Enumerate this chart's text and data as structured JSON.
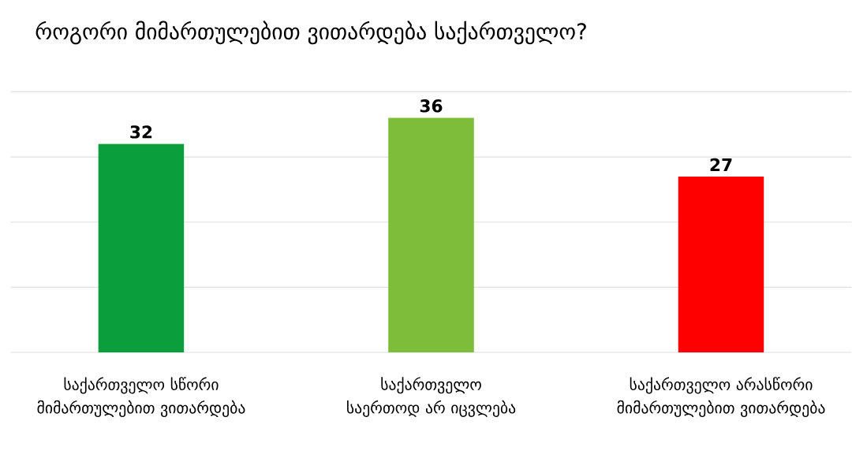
{
  "chart_data": {
    "type": "bar",
    "title": "როგორი მიმართულებით ვითარდება საქართველო?",
    "categories": [
      "საქართველო სწორი მიმართულებით ვითარდება",
      "საქართველო საერთოდ არ იცვლება",
      "საქართველო არასწორი მიმართულებით ვითარდება"
    ],
    "values": [
      32,
      36,
      27
    ],
    "colors": [
      "#0a9e3c",
      "#7dbd3a",
      "#fe0000"
    ],
    "ylim": [
      0,
      40
    ],
    "yticks": [
      {
        "value": 0,
        "label": null
      },
      {
        "value": 10,
        "label": null
      },
      {
        "value": 20,
        "label": null
      },
      {
        "value": 30,
        "label": null
      },
      {
        "value": 40,
        "label": null
      }
    ],
    "grid": "y",
    "data_labels": true
  }
}
